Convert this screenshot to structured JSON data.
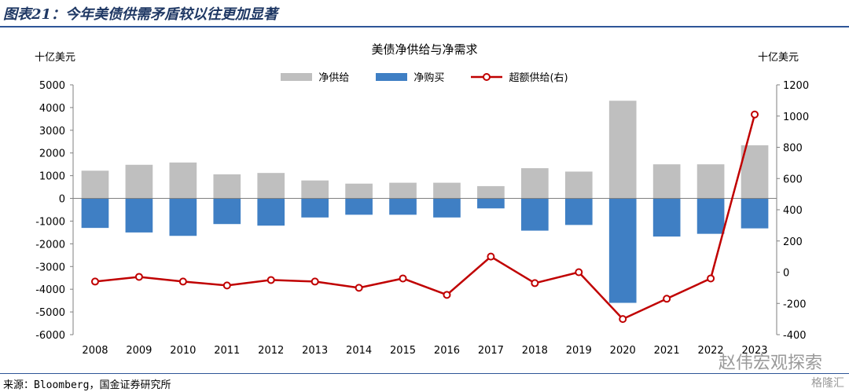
{
  "figure": {
    "title": "图表21：今年美债供需矛盾较以往更加显著",
    "source": "来源：Bloomberg，国金证券研究所",
    "watermark": "赵伟宏观探索",
    "watermark2": "格隆汇"
  },
  "chart_data": {
    "type": "bar",
    "title": "美债净供给与净需求",
    "left_unit": "十亿美元",
    "right_unit": "十亿美元",
    "categories": [
      "2008",
      "2009",
      "2010",
      "2011",
      "2012",
      "2013",
      "2014",
      "2015",
      "2016",
      "2017",
      "2018",
      "2019",
      "2020",
      "2021",
      "2022",
      "2023"
    ],
    "series": [
      {
        "name": "净供给",
        "type": "bar",
        "axis": "left",
        "color": "#bfbfbf",
        "values": [
          1220,
          1480,
          1580,
          1060,
          1120,
          790,
          650,
          690,
          690,
          540,
          1330,
          1180,
          4300,
          1500,
          1500,
          2340
        ]
      },
      {
        "name": "净购买",
        "type": "bar",
        "axis": "left",
        "color": "#3f7fc4",
        "values": [
          -1300,
          -1500,
          -1650,
          -1130,
          -1200,
          -840,
          -720,
          -720,
          -840,
          -440,
          -1420,
          -1170,
          -4600,
          -1680,
          -1560,
          -1320
        ]
      },
      {
        "name": "超额供给(右)",
        "type": "line",
        "axis": "right",
        "color": "#c00000",
        "values": [
          -60,
          -30,
          -60,
          -85,
          -50,
          -60,
          -100,
          -40,
          -145,
          100,
          -70,
          0,
          -300,
          -170,
          -40,
          1010
        ]
      }
    ],
    "ylim_left": [
      -6000,
      5000
    ],
    "yticks_left": [
      -6000,
      -5000,
      -4000,
      -3000,
      -2000,
      -1000,
      0,
      1000,
      2000,
      3000,
      4000,
      5000
    ],
    "ylim_right": [
      -400,
      1200
    ],
    "yticks_right": [
      -400,
      -200,
      0,
      200,
      400,
      600,
      800,
      1000,
      1200
    ],
    "legend_position": "top-center",
    "grid": false
  }
}
